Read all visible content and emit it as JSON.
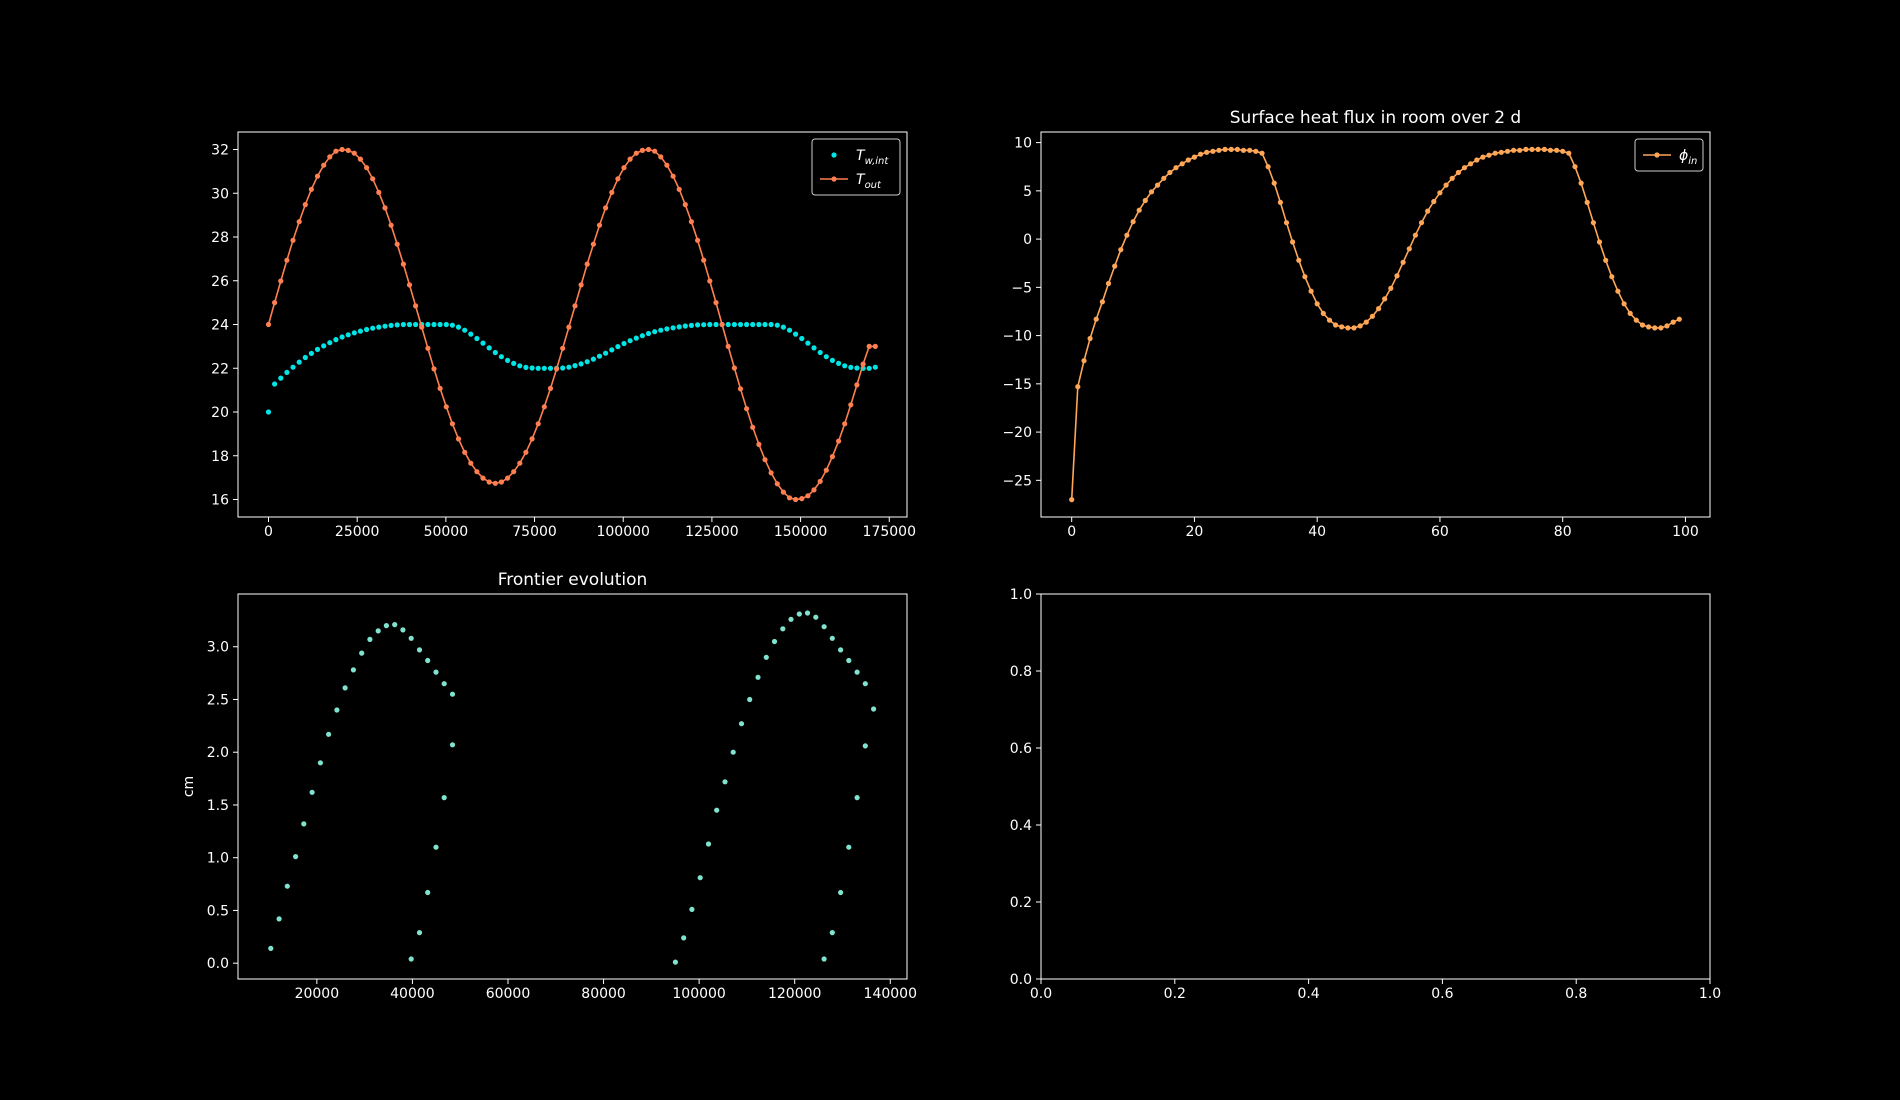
{
  "figure": {
    "background": "#000000",
    "foreground": "#ffffff"
  },
  "chart_data": [
    {
      "id": "temps",
      "type": "line",
      "title": "",
      "xlabel": "",
      "ylabel": "",
      "xlim": [
        -8600,
        180000
      ],
      "ylim": [
        15.2,
        32.8
      ],
      "xticks": [
        0,
        25000,
        50000,
        75000,
        100000,
        125000,
        150000,
        175000
      ],
      "yticks": [
        16,
        18,
        20,
        22,
        24,
        26,
        28,
        30,
        32
      ],
      "legend": {
        "placement": "upper right",
        "entries": [
          {
            "main": "T",
            "sub": "w,int"
          },
          {
            "main": "T",
            "sub": "out"
          }
        ]
      },
      "grid": false,
      "series": [
        {
          "name": "T_w,int",
          "color": "#00e5e5",
          "style": "scatter",
          "x": [
            0,
            1728,
            3456,
            5184,
            6912,
            8640,
            10368,
            12096,
            13824,
            15552,
            17280,
            19008,
            20736,
            22464,
            24192,
            25920,
            27648,
            29376,
            31104,
            32832,
            34560,
            36288,
            38016,
            39744,
            41472,
            43200,
            44928,
            46656,
            48384,
            50112,
            51840,
            53568,
            55296,
            57024,
            58752,
            60480,
            62208,
            63936,
            65664,
            67392,
            69120,
            70848,
            72576,
            74304,
            76032,
            77760,
            79488,
            81216,
            82944,
            84672,
            86400,
            88128,
            89856,
            91584,
            93312,
            95040,
            96768,
            98496,
            100224,
            101952,
            103680,
            105408,
            107136,
            108864,
            110592,
            112320,
            114048,
            115776,
            117504,
            119232,
            120960,
            122688,
            124416,
            126144,
            127872,
            129600,
            131328,
            133056,
            134784,
            136512,
            138240,
            139968,
            141696,
            143424,
            145152,
            146880,
            148608,
            150336,
            152064,
            153792,
            155520,
            157248,
            158976,
            160704,
            162432,
            164160,
            165888,
            167616,
            169344,
            171072
          ],
          "y": [
            20.0,
            21.28,
            21.55,
            21.81,
            22.05,
            22.28,
            22.49,
            22.68,
            22.86,
            23.02,
            23.17,
            23.31,
            23.43,
            23.53,
            23.62,
            23.7,
            23.77,
            23.83,
            23.88,
            23.92,
            23.96,
            23.98,
            24.0,
            24.0,
            24.0,
            24.0,
            24.0,
            24.0,
            24.0,
            24.0,
            23.97,
            23.88,
            23.74,
            23.56,
            23.36,
            23.15,
            22.93,
            22.72,
            22.53,
            22.36,
            22.22,
            22.11,
            22.04,
            22.01,
            22.0,
            22.0,
            22.0,
            22.0,
            22.01,
            22.05,
            22.12,
            22.2,
            22.3,
            22.42,
            22.55,
            22.69,
            22.84,
            22.99,
            23.13,
            23.26,
            23.38,
            23.49,
            23.59,
            23.67,
            23.74,
            23.8,
            23.85,
            23.89,
            23.93,
            23.96,
            23.98,
            23.99,
            24.0,
            24.0,
            24.0,
            24.0,
            24.0,
            24.0,
            24.0,
            24.0,
            24.0,
            24.0,
            24.0,
            23.97,
            23.88,
            23.74,
            23.56,
            23.36,
            23.15,
            22.93,
            22.72,
            22.53,
            22.36,
            22.22,
            22.11,
            22.04,
            22.01,
            22.0,
            22.0,
            22.05
          ]
        },
        {
          "name": "T_out",
          "color": "#ff7f50",
          "style": "line-marker",
          "x": [
            0,
            1728,
            3456,
            5184,
            6912,
            8640,
            10368,
            12096,
            13824,
            15552,
            17280,
            19008,
            20736,
            22464,
            24192,
            25920,
            27648,
            29376,
            31104,
            32832,
            34560,
            36288,
            38016,
            39744,
            41472,
            43200,
            44928,
            46656,
            48384,
            50112,
            51840,
            53568,
            55296,
            57024,
            58752,
            60480,
            62208,
            63936,
            65664,
            67392,
            69120,
            70848,
            72576,
            74304,
            76032,
            77760,
            79488,
            81216,
            82944,
            84672,
            86400,
            88128,
            89856,
            91584,
            93312,
            95040,
            96768,
            98496,
            100224,
            101952,
            103680,
            105408,
            107136,
            108864,
            110592,
            112320,
            114048,
            115776,
            117504,
            119232,
            120960,
            122688,
            124416,
            126144,
            127872,
            129600,
            131328,
            133056,
            134784,
            136512,
            138240,
            139968,
            141696,
            143424,
            145152,
            146880,
            148608,
            150336,
            152064,
            153792,
            155520,
            157248,
            158976,
            160704,
            162432,
            164160,
            165888,
            167616,
            169344,
            171072
          ],
          "y": [
            24.0,
            25.0,
            25.99,
            26.94,
            27.85,
            28.7,
            29.48,
            30.18,
            30.78,
            31.28,
            31.66,
            31.92,
            32.0,
            31.96,
            31.83,
            31.56,
            31.17,
            30.66,
            30.04,
            29.33,
            28.54,
            27.67,
            26.76,
            25.81,
            24.85,
            23.88,
            22.91,
            21.97,
            21.08,
            20.24,
            19.46,
            18.77,
            18.16,
            17.66,
            17.27,
            16.98,
            16.8,
            16.74,
            16.8,
            16.98,
            17.27,
            17.66,
            18.16,
            18.77,
            19.46,
            20.24,
            21.08,
            21.97,
            22.91,
            23.88,
            24.85,
            25.81,
            26.76,
            27.67,
            28.54,
            29.33,
            30.04,
            30.66,
            31.17,
            31.56,
            31.83,
            31.96,
            32.0,
            31.92,
            31.66,
            31.28,
            30.78,
            30.18,
            29.48,
            28.7,
            27.85,
            26.94,
            25.99,
            25.0,
            24.0,
            23.0,
            22.01,
            21.06,
            20.15,
            19.3,
            18.52,
            17.82,
            17.22,
            16.72,
            16.34,
            16.08,
            16.0,
            16.04,
            16.17,
            16.44,
            16.83,
            17.34,
            17.96,
            18.67,
            19.46,
            20.33,
            21.24,
            22.19,
            23.0,
            23.0
          ]
        }
      ]
    },
    {
      "id": "flux",
      "type": "line",
      "title": "Surface heat flux in room over  2 d",
      "xlabel": "",
      "ylabel": "",
      "xlim": [
        -5,
        104
      ],
      "ylim": [
        -28.8,
        11.1
      ],
      "xticks": [
        0,
        20,
        40,
        60,
        80,
        100
      ],
      "yticks": [
        10,
        5,
        0,
        -5,
        -10,
        -15,
        -20,
        -25
      ],
      "legend": {
        "placement": "upper right",
        "entries": [
          {
            "main": "ϕ",
            "sub": "in"
          }
        ]
      },
      "grid": false,
      "series": [
        {
          "name": "phi_in",
          "color": "#ffa657",
          "style": "line-marker",
          "x": [
            0,
            1,
            2,
            3,
            4,
            5,
            6,
            7,
            8,
            9,
            10,
            11,
            12,
            13,
            14,
            15,
            16,
            17,
            18,
            19,
            20,
            21,
            22,
            23,
            24,
            25,
            26,
            27,
            28,
            29,
            30,
            31,
            32,
            33,
            34,
            35,
            36,
            37,
            38,
            39,
            40,
            41,
            42,
            43,
            44,
            45,
            46,
            47,
            48,
            49,
            50,
            51,
            52,
            53,
            54,
            55,
            56,
            57,
            58,
            59,
            60,
            61,
            62,
            63,
            64,
            65,
            66,
            67,
            68,
            69,
            70,
            71,
            72,
            73,
            74,
            75,
            76,
            77,
            78,
            79,
            80,
            81,
            82,
            83,
            84,
            85,
            86,
            87,
            88,
            89,
            90,
            91,
            92,
            93,
            94,
            95,
            96,
            97,
            98,
            99
          ],
          "y": [
            -27.0,
            -15.3,
            -12.6,
            -10.3,
            -8.3,
            -6.5,
            -4.6,
            -2.8,
            -1.1,
            0.4,
            1.8,
            3.0,
            4.0,
            4.9,
            5.6,
            6.3,
            6.9,
            7.4,
            7.8,
            8.2,
            8.5,
            8.8,
            9.0,
            9.1,
            9.2,
            9.3,
            9.3,
            9.3,
            9.2,
            9.2,
            9.1,
            8.9,
            7.5,
            5.8,
            3.8,
            1.7,
            -0.3,
            -2.2,
            -3.9,
            -5.4,
            -6.7,
            -7.7,
            -8.4,
            -8.9,
            -9.1,
            -9.2,
            -9.2,
            -9.0,
            -8.6,
            -8.0,
            -7.2,
            -6.2,
            -5.1,
            -3.8,
            -2.4,
            -1.0,
            0.4,
            1.7,
            2.9,
            3.9,
            4.8,
            5.6,
            6.3,
            6.9,
            7.4,
            7.8,
            8.2,
            8.5,
            8.7,
            8.9,
            9.0,
            9.1,
            9.2,
            9.2,
            9.3,
            9.3,
            9.3,
            9.3,
            9.2,
            9.2,
            9.1,
            8.9,
            7.5,
            5.8,
            3.8,
            1.7,
            -0.3,
            -2.2,
            -3.9,
            -5.4,
            -6.7,
            -7.7,
            -8.4,
            -8.9,
            -9.1,
            -9.2,
            -9.2,
            -9.0,
            -8.6,
            -8.3
          ]
        }
      ]
    },
    {
      "id": "frontier",
      "type": "scatter",
      "title": "Frontier evolution",
      "xlabel": "",
      "ylabel": "cm",
      "xlim": [
        3500,
        143500
      ],
      "ylim": [
        -0.15,
        3.5
      ],
      "xticks": [
        20000,
        40000,
        60000,
        80000,
        100000,
        120000,
        140000
      ],
      "yticks": [
        0.0,
        0.5,
        1.0,
        1.5,
        2.0,
        2.5,
        3.0
      ],
      "grid": false,
      "series": [
        {
          "name": "",
          "color": "#7fe3cf",
          "style": "scatter",
          "points": [
            [
              10368,
              0.14
            ],
            [
              12096,
              0.42
            ],
            [
              13824,
              0.73
            ],
            [
              15552,
              1.01
            ],
            [
              17280,
              1.32
            ],
            [
              19008,
              1.62
            ],
            [
              20736,
              1.9
            ],
            [
              22464,
              2.17
            ],
            [
              24192,
              2.4
            ],
            [
              25920,
              2.61
            ],
            [
              27648,
              2.78
            ],
            [
              29376,
              2.94
            ],
            [
              31104,
              3.07
            ],
            [
              32832,
              3.15
            ],
            [
              34560,
              3.2
            ],
            [
              36288,
              3.21
            ],
            [
              38016,
              3.16
            ],
            [
              39744,
              3.08
            ],
            [
              41472,
              2.97
            ],
            [
              43200,
              2.87
            ],
            [
              44928,
              2.76
            ],
            [
              46656,
              2.65
            ],
            [
              48384,
              2.55
            ],
            [
              48384,
              2.07
            ],
            [
              46656,
              1.57
            ],
            [
              44928,
              1.1
            ],
            [
              43200,
              0.67
            ],
            [
              41472,
              0.29
            ],
            [
              39744,
              0.04
            ],
            [
              95040,
              0.01
            ],
            [
              96768,
              0.24
            ],
            [
              98496,
              0.51
            ],
            [
              100224,
              0.81
            ],
            [
              101952,
              1.13
            ],
            [
              103680,
              1.45
            ],
            [
              105408,
              1.72
            ],
            [
              107136,
              2.0
            ],
            [
              108864,
              2.27
            ],
            [
              110592,
              2.5
            ],
            [
              112320,
              2.71
            ],
            [
              114048,
              2.9
            ],
            [
              115776,
              3.05
            ],
            [
              117504,
              3.17
            ],
            [
              119232,
              3.26
            ],
            [
              120960,
              3.31
            ],
            [
              122688,
              3.32
            ],
            [
              124416,
              3.28
            ],
            [
              126144,
              3.19
            ],
            [
              127872,
              3.08
            ],
            [
              129600,
              2.97
            ],
            [
              131328,
              2.87
            ],
            [
              133056,
              2.76
            ],
            [
              134784,
              2.65
            ],
            [
              136512,
              2.41
            ],
            [
              134784,
              2.06
            ],
            [
              133056,
              1.57
            ],
            [
              131328,
              1.1
            ],
            [
              129600,
              0.67
            ],
            [
              127872,
              0.29
            ],
            [
              126144,
              0.04
            ]
          ]
        }
      ]
    },
    {
      "id": "empty",
      "type": "line",
      "title": "",
      "xlabel": "",
      "ylabel": "",
      "xlim": [
        0,
        1
      ],
      "ylim": [
        0,
        1
      ],
      "xticks": [
        0.0,
        0.2,
        0.4,
        0.6,
        0.8,
        1.0
      ],
      "yticks": [
        0.0,
        0.2,
        0.4,
        0.6,
        0.8,
        1.0
      ],
      "grid": false,
      "series": []
    }
  ]
}
